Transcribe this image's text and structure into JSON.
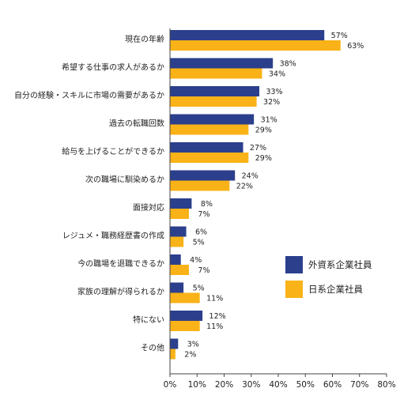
{
  "colors": {
    "foreign": "#2b3f8c",
    "japanese": "#f9b217",
    "axis": "#444444"
  },
  "chart_data": {
    "type": "bar",
    "orientation": "horizontal",
    "categories": [
      "現在の年齢",
      "希望する仕事の求人があるか",
      "自分の経験・スキルに市場の需要があるか",
      "過去の転職回数",
      "給与を上げることができるか",
      "次の職場に馴染めるか",
      "面接対応",
      "レジュメ・職務経歴書の作成",
      "今の職場を退職できるか",
      "家族の理解が得られるか",
      "特にない",
      "その他"
    ],
    "series": [
      {
        "name": "外資系企業社員",
        "values": [
          57,
          38,
          33,
          31,
          27,
          24,
          8,
          6,
          4,
          5,
          12,
          3
        ]
      },
      {
        "name": "日系企業社員",
        "values": [
          63,
          34,
          32,
          29,
          29,
          22,
          7,
          5,
          7,
          11,
          11,
          2
        ]
      }
    ],
    "x_ticks": [
      "0%",
      "10%",
      "20%",
      "30%",
      "40%",
      "50%",
      "60%",
      "70%",
      "80%"
    ],
    "xlim": [
      0,
      80
    ],
    "value_suffix": "%",
    "legend_placement": "right"
  }
}
